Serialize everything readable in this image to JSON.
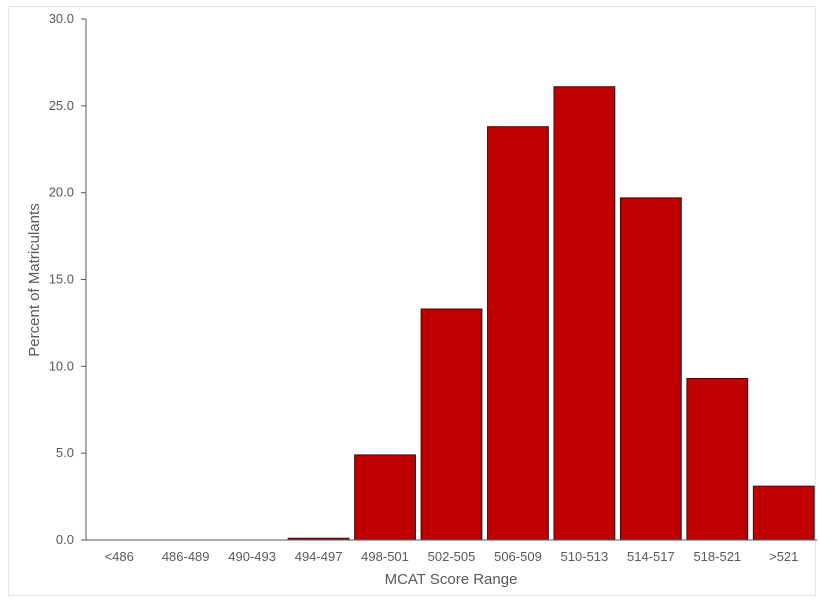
{
  "chart_data": {
    "type": "bar",
    "title": "",
    "xlabel": "MCAT Score Range",
    "ylabel": "Percent of Matriculants",
    "categories": [
      "<486",
      "486-489",
      "490-493",
      "494-497",
      "498-501",
      "502-505",
      "506-509",
      "510-513",
      "514-517",
      "518-521",
      ">521"
    ],
    "values": [
      0.0,
      0.0,
      0.0,
      0.1,
      4.9,
      13.3,
      23.8,
      26.1,
      19.7,
      9.3,
      3.1
    ],
    "ylim": [
      0,
      30
    ],
    "yticks": [
      "0.0",
      "5.0",
      "10.0",
      "15.0",
      "20.0",
      "25.0",
      "30.0"
    ],
    "ytick_values": [
      0,
      5,
      10,
      15,
      20,
      25,
      30
    ],
    "grid": false,
    "legend": "none",
    "colors": {
      "bar_fill": "#c00000",
      "bar_stroke": "#1a1a1a",
      "axis": "#595959"
    }
  }
}
